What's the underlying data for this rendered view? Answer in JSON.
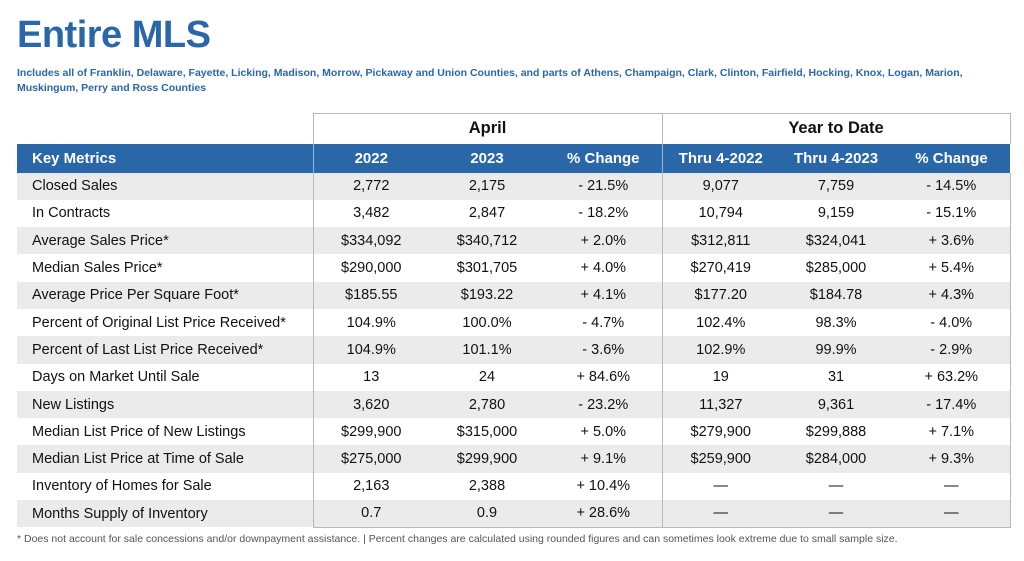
{
  "header": {
    "title": "Entire MLS",
    "subtitle": "Includes all of Franklin, Delaware, Fayette, Licking, Madison, Morrow, Pickaway and Union Counties, and parts of Athens, Champaign, Clark, Clinton, Fairfield, Hocking, Knox, Logan, Marion, Muskingum, Perry and Ross Counties"
  },
  "table": {
    "group_april": "April",
    "group_ytd": "Year to Date",
    "columns": [
      "Key Metrics",
      "2022",
      "2023",
      "% Change",
      "Thru 4-2022",
      "Thru 4-2023",
      "% Change"
    ],
    "rows": [
      [
        "Closed Sales",
        "2,772",
        "2,175",
        "- 21.5%",
        "9,077",
        "7,759",
        "- 14.5%"
      ],
      [
        "In Contracts",
        "3,482",
        "2,847",
        "- 18.2%",
        "10,794",
        "9,159",
        "- 15.1%"
      ],
      [
        "Average Sales Price*",
        "$334,092",
        "$340,712",
        "+ 2.0%",
        "$312,811",
        "$324,041",
        "+ 3.6%"
      ],
      [
        "Median Sales Price*",
        "$290,000",
        "$301,705",
        "+ 4.0%",
        "$270,419",
        "$285,000",
        "+ 5.4%"
      ],
      [
        "Average Price Per Square Foot*",
        "$185.55",
        "$193.22",
        "+ 4.1%",
        "$177.20",
        "$184.78",
        "+ 4.3%"
      ],
      [
        "Percent of Original List Price Received*",
        "104.9%",
        "100.0%",
        "- 4.7%",
        "102.4%",
        "98.3%",
        "- 4.0%"
      ],
      [
        "Percent of Last List Price Received*",
        "104.9%",
        "101.1%",
        "- 3.6%",
        "102.9%",
        "99.9%",
        "- 2.9%"
      ],
      [
        "Days on Market Until Sale",
        "13",
        "24",
        "+ 84.6%",
        "19",
        "31",
        "+ 63.2%"
      ],
      [
        "New Listings",
        "3,620",
        "2,780",
        "- 23.2%",
        "11,327",
        "9,361",
        "- 17.4%"
      ],
      [
        "Median List Price of New Listings",
        "$299,900",
        "$315,000",
        "+ 5.0%",
        "$279,900",
        "$299,888",
        "+ 7.1%"
      ],
      [
        "Median List Price at Time of Sale",
        "$275,000",
        "$299,900",
        "+ 9.1%",
        "$259,900",
        "$284,000",
        "+ 9.3%"
      ],
      [
        "Inventory of Homes for Sale",
        "2,163",
        "2,388",
        "+ 10.4%",
        "—",
        "—",
        "—"
      ],
      [
        "Months Supply of Inventory",
        "0.7",
        "0.9",
        "+ 28.6%",
        "—",
        "—",
        "—"
      ]
    ]
  },
  "footnote": "* Does not account for sale concessions and/or downpayment assistance. | Percent changes are calculated using rounded figures and can sometimes look extreme due to small sample size.",
  "colors": {
    "accent": "#2a67a8",
    "header_text": "#ffffff",
    "row_shade": "#ebebeb"
  }
}
